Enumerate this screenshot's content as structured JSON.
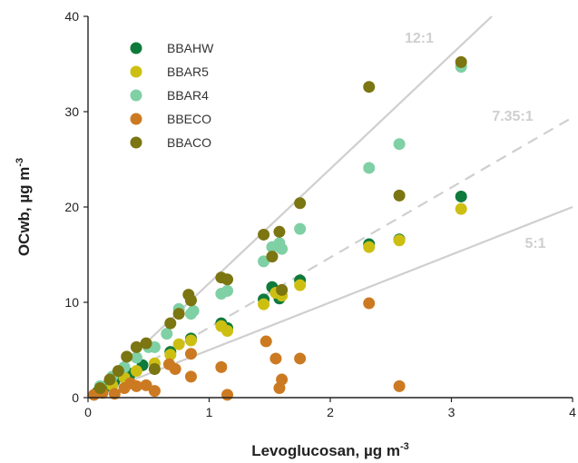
{
  "chart_data": {
    "type": "scatter",
    "xlabel": "Levoglucosan, µg m",
    "xlabel_sup": "-3",
    "ylabel": "OCwb, µg m",
    "ylabel_sup": "-3",
    "xlim": [
      0,
      4
    ],
    "ylim": [
      0,
      40
    ],
    "xticks": [
      0,
      1,
      2,
      3,
      4
    ],
    "yticks": [
      0,
      10,
      20,
      30,
      40
    ],
    "grid": false,
    "legend_position": "top-left",
    "reference_lines": [
      {
        "label": "12:1",
        "slope": 12,
        "style": "solid",
        "color": "#cfcfcf"
      },
      {
        "label": "7.35:1",
        "slope": 7.35,
        "style": "dashed",
        "color": "#cfcfcf"
      },
      {
        "label": "5:1",
        "slope": 5,
        "style": "solid",
        "color": "#cfcfcf"
      }
    ],
    "series": [
      {
        "name": "BBAHW",
        "color": "#0e7a3c",
        "points": [
          [
            0.08,
            0.6
          ],
          [
            0.15,
            1.2
          ],
          [
            0.22,
            1.8
          ],
          [
            0.35,
            2.5
          ],
          [
            0.45,
            3.4
          ],
          [
            0.68,
            4.8
          ],
          [
            0.85,
            6.2
          ],
          [
            1.1,
            7.8
          ],
          [
            1.15,
            7.3
          ],
          [
            1.45,
            10.3
          ],
          [
            1.52,
            11.6
          ],
          [
            1.58,
            10.4
          ],
          [
            1.75,
            12.3
          ],
          [
            2.32,
            16.1
          ],
          [
            2.57,
            16.6
          ],
          [
            3.08,
            21.1
          ]
        ]
      },
      {
        "name": "BBAR5",
        "color": "#cdbf12",
        "points": [
          [
            0.1,
            0.7
          ],
          [
            0.2,
            1.3
          ],
          [
            0.3,
            2.1
          ],
          [
            0.4,
            2.8
          ],
          [
            0.55,
            3.6
          ],
          [
            0.68,
            4.5
          ],
          [
            0.75,
            5.6
          ],
          [
            0.85,
            6.0
          ],
          [
            1.1,
            7.5
          ],
          [
            1.15,
            7.0
          ],
          [
            1.45,
            9.8
          ],
          [
            1.55,
            11.0
          ],
          [
            1.6,
            10.7
          ],
          [
            1.75,
            11.8
          ],
          [
            2.32,
            15.8
          ],
          [
            2.57,
            16.5
          ],
          [
            3.08,
            19.8
          ]
        ]
      },
      {
        "name": "BBAR4",
        "color": "#7fd0a4",
        "points": [
          [
            0.1,
            1.2
          ],
          [
            0.2,
            2.2
          ],
          [
            0.3,
            3.2
          ],
          [
            0.4,
            4.2
          ],
          [
            0.5,
            5.3
          ],
          [
            0.55,
            5.3
          ],
          [
            0.65,
            6.7
          ],
          [
            0.75,
            9.3
          ],
          [
            0.85,
            8.8
          ],
          [
            0.87,
            9.1
          ],
          [
            1.1,
            10.9
          ],
          [
            1.15,
            11.2
          ],
          [
            1.45,
            14.3
          ],
          [
            1.52,
            15.8
          ],
          [
            1.58,
            16.2
          ],
          [
            1.6,
            15.6
          ],
          [
            1.75,
            17.7
          ],
          [
            2.32,
            24.1
          ],
          [
            2.57,
            26.6
          ],
          [
            3.08,
            34.7
          ]
        ]
      },
      {
        "name": "BBECO",
        "color": "#cc7a22",
        "points": [
          [
            0.05,
            0.3
          ],
          [
            0.12,
            0.5
          ],
          [
            0.22,
            0.4
          ],
          [
            0.3,
            1.0
          ],
          [
            0.35,
            1.5
          ],
          [
            0.4,
            1.2
          ],
          [
            0.48,
            1.3
          ],
          [
            0.55,
            0.7
          ],
          [
            0.67,
            3.5
          ],
          [
            0.72,
            3.0
          ],
          [
            0.85,
            2.2
          ],
          [
            0.85,
            4.6
          ],
          [
            1.1,
            3.2
          ],
          [
            1.15,
            0.3
          ],
          [
            1.47,
            5.9
          ],
          [
            1.55,
            4.1
          ],
          [
            1.58,
            1.0
          ],
          [
            1.6,
            1.9
          ],
          [
            1.75,
            4.1
          ],
          [
            2.32,
            9.9
          ],
          [
            2.57,
            1.2
          ]
        ]
      },
      {
        "name": "BBACO",
        "color": "#7b7512",
        "points": [
          [
            0.1,
            1.0
          ],
          [
            0.18,
            1.9
          ],
          [
            0.25,
            2.8
          ],
          [
            0.32,
            4.3
          ],
          [
            0.4,
            5.3
          ],
          [
            0.48,
            5.7
          ],
          [
            0.55,
            3.0
          ],
          [
            0.68,
            7.8
          ],
          [
            0.75,
            8.8
          ],
          [
            0.83,
            10.8
          ],
          [
            0.85,
            10.2
          ],
          [
            1.1,
            12.6
          ],
          [
            1.15,
            12.4
          ],
          [
            1.45,
            17.1
          ],
          [
            1.52,
            14.8
          ],
          [
            1.58,
            17.4
          ],
          [
            1.6,
            11.3
          ],
          [
            1.75,
            20.4
          ],
          [
            2.32,
            32.6
          ],
          [
            2.57,
            21.2
          ],
          [
            3.08,
            35.2
          ]
        ]
      }
    ]
  }
}
